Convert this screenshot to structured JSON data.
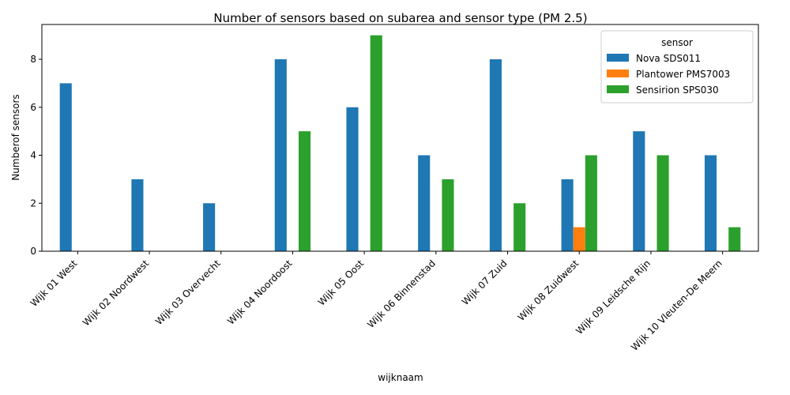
{
  "chart_data": {
    "type": "bar",
    "title": "Number of sensors based on subarea and sensor type (PM 2.5)",
    "xlabel": "wijknaam",
    "ylabel": "Numberof sensors",
    "ylim": [
      0,
      9.45
    ],
    "yticks": [
      0,
      2,
      4,
      6,
      8
    ],
    "grid": false,
    "legend": {
      "title": "sensor",
      "placement": "top-right"
    },
    "categories": [
      "Wijk 01 West",
      "Wijk 02 Noordwest",
      "Wijk 03 Overvecht",
      "Wijk 04 Noordoost",
      "Wijk 05 Oost",
      "Wijk 06 Binnenstad",
      "Wijk 07 Zuid",
      "Wijk 08 Zuidwest",
      "Wijk 09 Leidsche Rijn",
      "Wijk 10 Vleuten-De Meern"
    ],
    "series": [
      {
        "name": "Nova SDS011",
        "color": "#1f77b4",
        "values": [
          7,
          3,
          2,
          8,
          6,
          4,
          8,
          3,
          5,
          4
        ]
      },
      {
        "name": "Plantower PMS7003",
        "color": "#ff7f0e",
        "values": [
          0,
          0,
          0,
          0,
          0,
          0,
          0,
          1,
          0,
          0
        ]
      },
      {
        "name": "Sensirion SPS030",
        "color": "#2ca02c",
        "values": [
          0,
          0,
          0,
          5,
          9,
          3,
          2,
          4,
          4,
          1
        ]
      }
    ]
  }
}
